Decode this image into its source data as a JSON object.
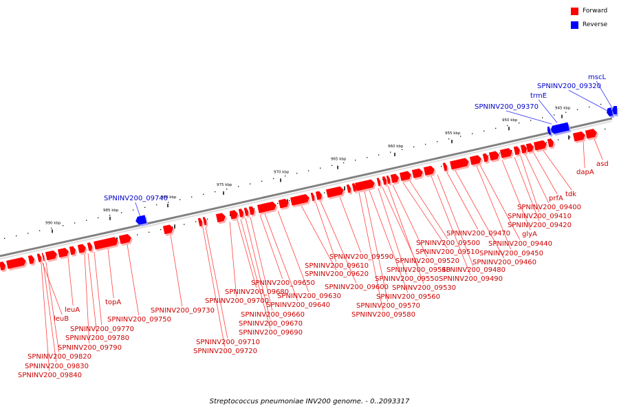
{
  "legend": [
    {
      "label": "Forward",
      "color": "#ff0000"
    },
    {
      "label": "Reverse",
      "color": "#0000ff"
    }
  ],
  "caption": "Streptococcus pneumoniae INV200 genome. - 0..2093317",
  "colors": {
    "forward": "#ff0000",
    "reverse": "#0000ff",
    "backbone": "#808080",
    "forward_label": "#cc0000",
    "reverse_label": "#0000cc"
  },
  "scale_ticks": [
    "945 kbp",
    "950 kbp",
    "955 kbp",
    "960 kbp",
    "965 kbp",
    "970 kbp",
    "975 kbp",
    "980 kbp",
    "985 kbp",
    "990 kbp"
  ],
  "genes_forward": [
    "SPNINV200_09840",
    "SPNINV200_09830",
    "SPNINV200_09820",
    "leuB",
    "leuA",
    "SPNINV200_09790",
    "SPNINV200_09780",
    "SPNINV200_09770",
    "topA",
    "SPNINV200_09750",
    "SPNINV200_09730",
    "SPNINV200_09720",
    "SPNINV200_09710",
    "SPNINV200_09700",
    "SPNINV200_09690",
    "SPNINV200_09680",
    "SPNINV200_09670",
    "SPNINV200_09660",
    "SPNINV200_09650",
    "SPNINV200_09640",
    "SPNINV200_09630",
    "SPNINV200_09620",
    "SPNINV200_09610",
    "SPNINV200_09600",
    "SPNINV200_09590",
    "SPNINV200_09580",
    "SPNINV200_09570",
    "SPNINV200_09560",
    "SPNINV200_09550",
    "SPNINV200_09540",
    "SPNINV200_09530",
    "SPNINV200_09520",
    "SPNINV200_09510",
    "SPNINV200_09500",
    "SPNINV200_09490",
    "SPNINV200_09480",
    "SPNINV200_09470",
    "SPNINV200_09460",
    "SPNINV200_09450",
    "SPNINV200_09440",
    "glyA",
    "SPNINV200_09420",
    "SPNINV200_09410",
    "SPNINV200_09400",
    "prfA",
    "tdk",
    "dapA",
    "asd"
  ],
  "genes_reverse": [
    "SPNINV200_09740",
    "SPNINV200_09370",
    "trmE",
    "SPNINV200_09320",
    "mscL"
  ]
}
